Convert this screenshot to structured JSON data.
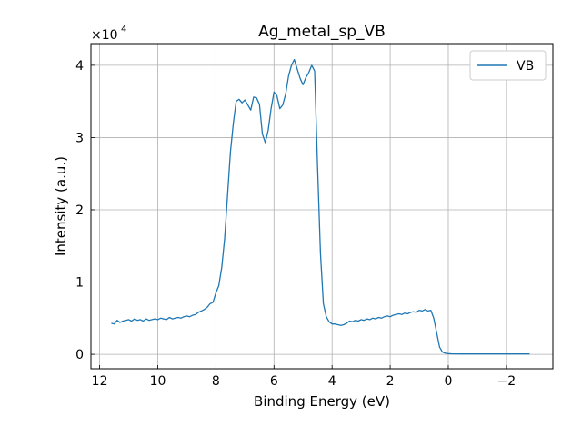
{
  "chart_data": {
    "type": "line",
    "title": "Ag_metal_sp_VB",
    "xlabel": "Binding Energy (eV)",
    "ylabel": "Intensity (a.u.)",
    "y_scale_label": "×10",
    "y_scale_exponent": "4",
    "x_inverted": true,
    "xlim": [
      12.3,
      -3.6
    ],
    "ylim": [
      -2000,
      43000
    ],
    "x_ticks": [
      12,
      10,
      8,
      6,
      4,
      2,
      0,
      -2
    ],
    "x_tick_labels": [
      "12",
      "10",
      "8",
      "6",
      "4",
      "2",
      "0",
      "−2"
    ],
    "y_ticks": [
      0,
      10000,
      20000,
      30000,
      40000
    ],
    "y_tick_labels": [
      "0",
      "1",
      "2",
      "3",
      "4"
    ],
    "grid": true,
    "legend_position": "top-right",
    "series": [
      {
        "name": "VB",
        "color": "#1f77b4",
        "x": [
          11.6,
          11.5,
          11.4,
          11.3,
          11.2,
          11.1,
          11.0,
          10.9,
          10.8,
          10.7,
          10.6,
          10.5,
          10.4,
          10.3,
          10.2,
          10.1,
          10.0,
          9.9,
          9.8,
          9.7,
          9.6,
          9.5,
          9.4,
          9.3,
          9.2,
          9.1,
          9.0,
          8.9,
          8.8,
          8.7,
          8.6,
          8.5,
          8.4,
          8.3,
          8.2,
          8.1,
          8.0,
          7.9,
          7.8,
          7.7,
          7.6,
          7.5,
          7.4,
          7.3,
          7.2,
          7.1,
          7.0,
          6.9,
          6.8,
          6.7,
          6.6,
          6.5,
          6.4,
          6.3,
          6.2,
          6.1,
          6.0,
          5.9,
          5.8,
          5.7,
          5.6,
          5.5,
          5.4,
          5.3,
          5.2,
          5.1,
          5.0,
          4.9,
          4.8,
          4.7,
          4.6,
          4.5,
          4.4,
          4.3,
          4.2,
          4.1,
          4.0,
          3.9,
          3.8,
          3.7,
          3.6,
          3.5,
          3.4,
          3.3,
          3.2,
          3.1,
          3.0,
          2.9,
          2.8,
          2.7,
          2.6,
          2.5,
          2.4,
          2.3,
          2.2,
          2.1,
          2.0,
          1.9,
          1.8,
          1.7,
          1.6,
          1.5,
          1.4,
          1.3,
          1.2,
          1.1,
          1.0,
          0.9,
          0.8,
          0.7,
          0.6,
          0.5,
          0.4,
          0.3,
          0.2,
          0.1,
          0.0,
          -0.1,
          -0.2,
          -0.3,
          -0.5,
          -1.0,
          -1.5,
          -2.0,
          -2.5,
          -2.8
        ],
        "y": [
          4300,
          4200,
          4700,
          4400,
          4600,
          4700,
          4800,
          4600,
          4900,
          4700,
          4800,
          4600,
          4900,
          4700,
          4800,
          4900,
          4800,
          5000,
          4900,
          4800,
          5100,
          4900,
          5000,
          5100,
          5000,
          5200,
          5300,
          5200,
          5400,
          5500,
          5800,
          6000,
          6200,
          6500,
          7000,
          7200,
          8500,
          9500,
          12000,
          16000,
          22000,
          28000,
          32000,
          35000,
          35300,
          34800,
          35200,
          34500,
          33800,
          35600,
          35500,
          34600,
          30500,
          29300,
          31000,
          34000,
          36300,
          35800,
          34000,
          34500,
          36000,
          38500,
          40000,
          40800,
          39500,
          38200,
          37300,
          38300,
          39000,
          40000,
          39200,
          26000,
          14000,
          7000,
          5200,
          4500,
          4200,
          4200,
          4100,
          4000,
          4100,
          4300,
          4600,
          4500,
          4700,
          4600,
          4800,
          4700,
          4900,
          4800,
          5000,
          4900,
          5100,
          5000,
          5200,
          5300,
          5200,
          5400,
          5500,
          5600,
          5500,
          5700,
          5600,
          5800,
          5900,
          5800,
          6100,
          6000,
          6200,
          6000,
          6100,
          5000,
          3000,
          1000,
          300,
          150,
          100,
          80,
          60,
          60,
          50,
          50,
          50,
          50,
          50,
          50
        ]
      }
    ]
  }
}
